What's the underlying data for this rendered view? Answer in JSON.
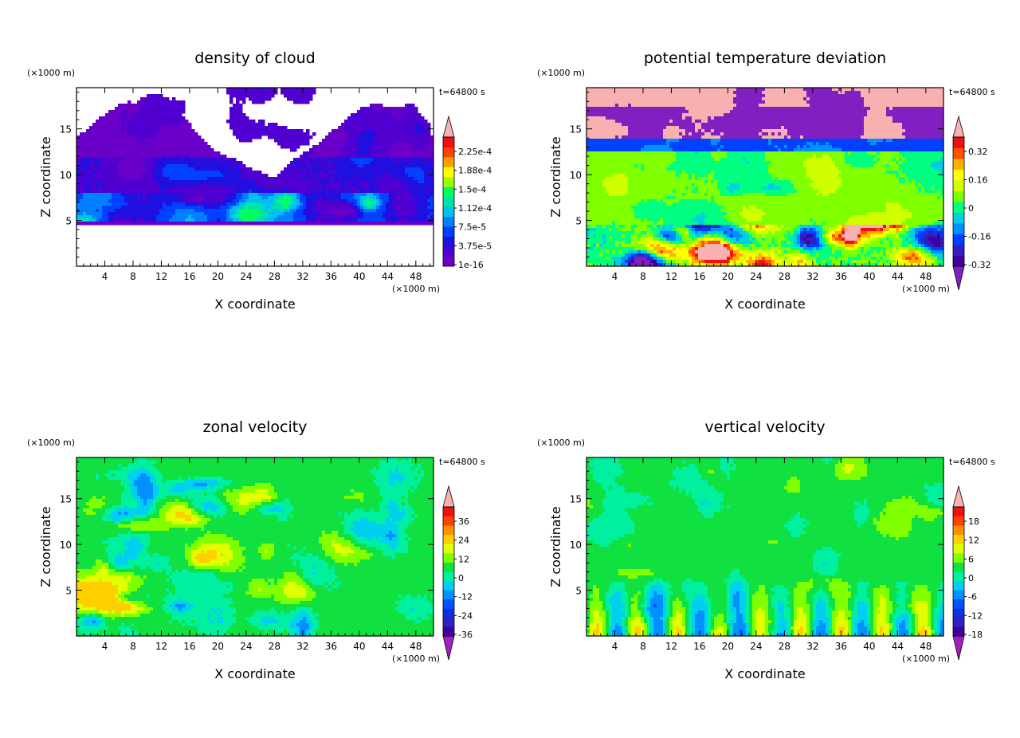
{
  "page": {
    "background": "#ffffff"
  },
  "chart_data": [
    {
      "type": "heatmap",
      "title": "density of cloud",
      "xlabel": "X coordinate",
      "ylabel": "Z coordinate",
      "x_units": "(×1000 m)",
      "y_units": "(×1000 m)",
      "time_label": "t=64800 s",
      "xlim": [
        0,
        50.5
      ],
      "ylim": [
        0,
        19.5
      ],
      "x_ticks": [
        4,
        8,
        12,
        16,
        20,
        24,
        28,
        32,
        36,
        40,
        44,
        48
      ],
      "y_ticks": [
        5,
        10,
        15
      ],
      "colorbar": {
        "labels": [
          "2.25e-4",
          "1.88e-4",
          "1.5e-4",
          "1.12e-4",
          "7.5e-5",
          "3.75e-5",
          "1e-16"
        ],
        "levels": 13,
        "colors": [
          "#6a00c8",
          "#5000d0",
          "#2010e0",
          "#0040ff",
          "#0080ff",
          "#00c0f0",
          "#00e0b0",
          "#00ff60",
          "#a0ff00",
          "#ffff00",
          "#ffa000",
          "#ff4000",
          "#f01010"
        ],
        "over_color": "#f8b0b0",
        "extend": "max"
      },
      "field_summary": "cloud layer between z≈4.5 and z≈19 km; densest band z≈5–8 km"
    },
    {
      "type": "heatmap",
      "title": "potential temperature deviation",
      "xlabel": "X coordinate",
      "ylabel": "Z coordinate",
      "x_units": "(×1000 m)",
      "y_units": "(×1000 m)",
      "time_label": "t=64800 s",
      "xlim": [
        0,
        50.5
      ],
      "ylim": [
        0,
        19.5
      ],
      "x_ticks": [
        4,
        8,
        12,
        16,
        20,
        24,
        28,
        32,
        36,
        40,
        44,
        48
      ],
      "y_ticks": [
        5,
        10,
        15
      ],
      "colorbar": {
        "labels": [
          "0.32",
          "0.16",
          "0",
          "-0.16",
          "-0.32"
        ],
        "levels": 12,
        "colors": [
          "#4000a0",
          "#3020c0",
          "#0040ff",
          "#0090ff",
          "#00d0e0",
          "#00ff80",
          "#80ff00",
          "#d0ff00",
          "#ffff00",
          "#ffb000",
          "#ff5000",
          "#f01010"
        ],
        "over_color": "#f8b0b0",
        "under_color": "#8020c0",
        "extend": "both"
      }
    },
    {
      "type": "heatmap",
      "title": "zonal velocity",
      "xlabel": "X coordinate",
      "ylabel": "Z coordinate",
      "x_units": "(×1000 m)",
      "y_units": "(×1000 m)",
      "time_label": "t=64800 s",
      "xlim": [
        0,
        50.5
      ],
      "ylim": [
        0,
        19.5
      ],
      "x_ticks": [
        4,
        8,
        12,
        16,
        20,
        24,
        28,
        32,
        36,
        40,
        44,
        48
      ],
      "y_ticks": [
        5,
        10,
        15
      ],
      "colorbar": {
        "labels": [
          "36",
          "24",
          "12",
          "0",
          "-12",
          "-24",
          "-36"
        ],
        "levels": 14,
        "colors": [
          "#4000a0",
          "#3020c0",
          "#1030e0",
          "#0050ff",
          "#0090ff",
          "#00d0f0",
          "#00f0a0",
          "#10e040",
          "#80ff00",
          "#e0ff00",
          "#ffd000",
          "#ff9000",
          "#ff4000",
          "#f01010"
        ],
        "over_color": "#f8b0b0",
        "under_color": "#a020c0",
        "extend": "both"
      }
    },
    {
      "type": "heatmap",
      "title": "vertical velocity",
      "xlabel": "X coordinate",
      "ylabel": "Z coordinate",
      "x_units": "(×1000 m)",
      "y_units": "(×1000 m)",
      "time_label": "t=64800 s",
      "xlim": [
        0,
        50.5
      ],
      "ylim": [
        0,
        19.5
      ],
      "x_ticks": [
        4,
        8,
        12,
        16,
        20,
        24,
        28,
        32,
        36,
        40,
        44,
        48
      ],
      "y_ticks": [
        5,
        10,
        15
      ],
      "colorbar": {
        "labels": [
          "18",
          "12",
          "6",
          "0",
          "-6",
          "-12",
          "-18"
        ],
        "levels": 14,
        "colors": [
          "#4000a0",
          "#3020c0",
          "#1030e0",
          "#0050ff",
          "#0090ff",
          "#00d0f0",
          "#00f0a0",
          "#10e040",
          "#80ff00",
          "#e0ff00",
          "#ffd000",
          "#ff9000",
          "#ff4000",
          "#f01010"
        ],
        "over_color": "#f8b0b0",
        "under_color": "#a020c0",
        "extend": "both"
      }
    }
  ]
}
